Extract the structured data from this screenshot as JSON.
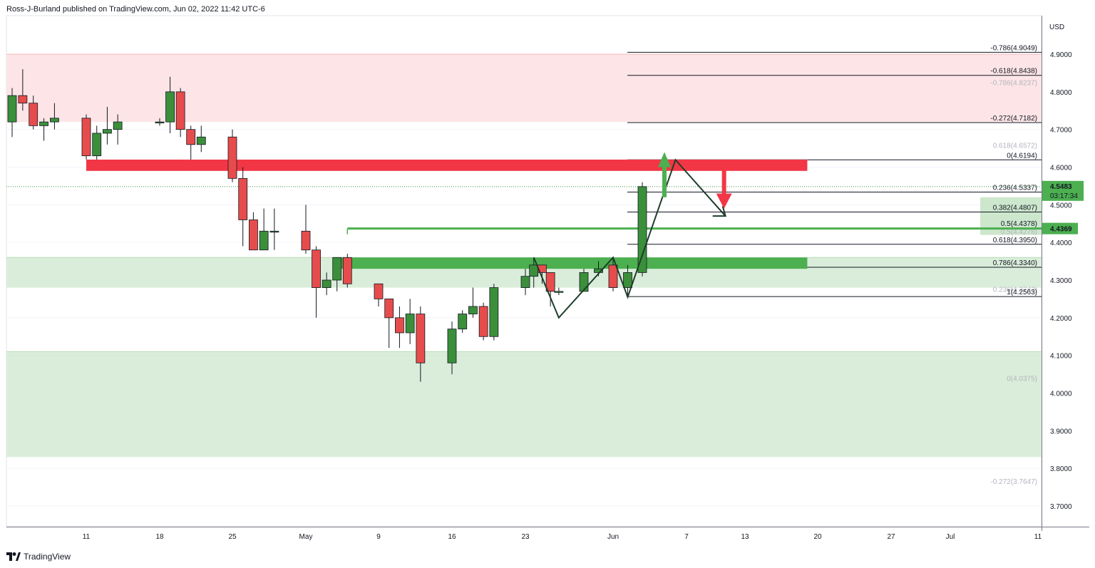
{
  "header": {
    "text": "Ross-J-Burland published on TradingView.com, Jun 02, 2022 11:42 UTC-6"
  },
  "footer": {
    "brand": "TradingView"
  },
  "colors": {
    "up": "#3b8f3b",
    "down": "#e74c4c",
    "resistance_band": "#f23645",
    "support_band": "#4caf50",
    "pink_zone": "#fde2e4",
    "green_zone": "#d6ebd6",
    "price_badge": "#4caf50",
    "target_badge": "#4caf50"
  },
  "chart_data": {
    "type": "candlestick",
    "currency": "USD",
    "y_ticks": [
      4.9,
      4.8,
      4.7,
      4.6,
      4.5,
      4.4,
      4.3,
      4.2,
      4.1,
      4.0,
      3.9,
      3.8,
      3.7
    ],
    "y_tick_labels": [
      "4.9000",
      "4.8000",
      "4.7000",
      "4.6000",
      "4.5000",
      "4.4000",
      "4.3000",
      "4.2000",
      "4.1000",
      "4.0000",
      "3.9000",
      "3.8000",
      "3.7000"
    ],
    "ylim": [
      3.64,
      4.98
    ],
    "x_labels": [
      {
        "label": "11",
        "date": "2022-04-11"
      },
      {
        "label": "18",
        "date": "2022-04-18"
      },
      {
        "label": "25",
        "date": "2022-04-25"
      },
      {
        "label": "May",
        "date": "2022-05-02"
      },
      {
        "label": "9",
        "date": "2022-05-09"
      },
      {
        "label": "16",
        "date": "2022-05-16"
      },
      {
        "label": "23",
        "date": "2022-05-23"
      },
      {
        "label": "Jun",
        "date": "2022-06-01"
      },
      {
        "label": "7",
        "date": "2022-06-07"
      },
      {
        "label": "13",
        "date": "2022-06-13"
      },
      {
        "label": "20",
        "date": "2022-06-20"
      },
      {
        "label": "27",
        "date": "2022-06-27"
      },
      {
        "label": "Jul",
        "date": "2022-07-01"
      },
      {
        "label": "11",
        "date": "2022-07-11"
      }
    ],
    "candles": [
      {
        "date": "2022-04-04",
        "o": 4.72,
        "h": 4.81,
        "l": 4.68,
        "c": 4.79
      },
      {
        "date": "2022-04-05",
        "o": 4.79,
        "h": 4.86,
        "l": 4.75,
        "c": 4.77
      },
      {
        "date": "2022-04-06",
        "o": 4.77,
        "h": 4.79,
        "l": 4.7,
        "c": 4.71
      },
      {
        "date": "2022-04-07",
        "o": 4.71,
        "h": 4.73,
        "l": 4.67,
        "c": 4.72
      },
      {
        "date": "2022-04-08",
        "o": 4.72,
        "h": 4.77,
        "l": 4.7,
        "c": 4.73
      },
      {
        "date": "2022-04-11",
        "o": 4.73,
        "h": 4.74,
        "l": 4.62,
        "c": 4.63
      },
      {
        "date": "2022-04-12",
        "o": 4.63,
        "h": 4.71,
        "l": 4.62,
        "c": 4.69
      },
      {
        "date": "2022-04-13",
        "o": 4.69,
        "h": 4.76,
        "l": 4.66,
        "c": 4.7
      },
      {
        "date": "2022-04-14",
        "o": 4.7,
        "h": 4.74,
        "l": 4.66,
        "c": 4.72
      },
      {
        "date": "2022-04-18",
        "o": 4.72,
        "h": 4.73,
        "l": 4.71,
        "c": 4.72
      },
      {
        "date": "2022-04-19",
        "o": 4.72,
        "h": 4.84,
        "l": 4.69,
        "c": 4.8
      },
      {
        "date": "2022-04-20",
        "o": 4.8,
        "h": 4.81,
        "l": 4.68,
        "c": 4.7
      },
      {
        "date": "2022-04-21",
        "o": 4.7,
        "h": 4.71,
        "l": 4.62,
        "c": 4.66
      },
      {
        "date": "2022-04-22",
        "o": 4.66,
        "h": 4.71,
        "l": 4.64,
        "c": 4.68
      },
      {
        "date": "2022-04-25",
        "o": 4.68,
        "h": 4.7,
        "l": 4.56,
        "c": 4.57
      },
      {
        "date": "2022-04-26",
        "o": 4.57,
        "h": 4.6,
        "l": 4.39,
        "c": 4.46
      },
      {
        "date": "2022-04-27",
        "o": 4.46,
        "h": 4.48,
        "l": 4.38,
        "c": 4.38
      },
      {
        "date": "2022-04-28",
        "o": 4.38,
        "h": 4.49,
        "l": 4.38,
        "c": 4.43
      },
      {
        "date": "2022-04-29",
        "o": 4.43,
        "h": 4.49,
        "l": 4.38,
        "c": 4.43
      },
      {
        "date": "2022-05-02",
        "o": 4.43,
        "h": 4.5,
        "l": 4.37,
        "c": 4.38
      },
      {
        "date": "2022-05-03",
        "o": 4.38,
        "h": 4.39,
        "l": 4.2,
        "c": 4.28
      },
      {
        "date": "2022-05-04",
        "o": 4.28,
        "h": 4.32,
        "l": 4.26,
        "c": 4.3
      },
      {
        "date": "2022-05-05",
        "o": 4.3,
        "h": 4.36,
        "l": 4.27,
        "c": 4.36
      },
      {
        "date": "2022-05-06",
        "o": 4.36,
        "h": 4.37,
        "l": 4.28,
        "c": 4.29
      },
      {
        "date": "2022-05-09",
        "o": 4.29,
        "h": 4.29,
        "l": 4.23,
        "c": 4.25
      },
      {
        "date": "2022-05-10",
        "o": 4.25,
        "h": 4.25,
        "l": 4.12,
        "c": 4.2
      },
      {
        "date": "2022-05-11",
        "o": 4.2,
        "h": 4.23,
        "l": 4.12,
        "c": 4.16
      },
      {
        "date": "2022-05-12",
        "o": 4.16,
        "h": 4.25,
        "l": 4.13,
        "c": 4.21
      },
      {
        "date": "2022-05-13",
        "o": 4.21,
        "h": 4.23,
        "l": 4.03,
        "c": 4.08
      },
      {
        "date": "2022-05-16",
        "o": 4.08,
        "h": 4.19,
        "l": 4.05,
        "c": 4.17
      },
      {
        "date": "2022-05-17",
        "o": 4.17,
        "h": 4.22,
        "l": 4.16,
        "c": 4.21
      },
      {
        "date": "2022-05-18",
        "o": 4.21,
        "h": 4.28,
        "l": 4.2,
        "c": 4.23
      },
      {
        "date": "2022-05-19",
        "o": 4.23,
        "h": 4.24,
        "l": 4.14,
        "c": 4.15
      },
      {
        "date": "2022-05-20",
        "o": 4.15,
        "h": 4.29,
        "l": 4.14,
        "c": 4.28
      },
      {
        "date": "2022-05-23",
        "o": 4.28,
        "h": 4.33,
        "l": 4.26,
        "c": 4.31
      },
      {
        "date": "2022-05-24",
        "o": 4.31,
        "h": 4.36,
        "l": 4.28,
        "c": 4.34
      },
      {
        "date": "2022-05-25",
        "o": 4.34,
        "h": 4.34,
        "l": 4.29,
        "c": 4.32
      },
      {
        "date": "2022-05-26",
        "o": 4.32,
        "h": 4.32,
        "l": 4.23,
        "c": 4.27
      },
      {
        "date": "2022-05-27",
        "o": 4.27,
        "h": 4.28,
        "l": 4.26,
        "c": 4.27
      },
      {
        "date": "2022-05-30",
        "o": 4.27,
        "h": 4.33,
        "l": 4.27,
        "c": 4.32
      },
      {
        "date": "2022-05-31",
        "o": 4.32,
        "h": 4.35,
        "l": 4.31,
        "c": 4.33
      },
      {
        "date": "2022-06-01",
        "o": 4.34,
        "h": 4.36,
        "l": 4.27,
        "c": 4.28
      },
      {
        "date": "2022-06-02",
        "o": 4.28,
        "h": 4.34,
        "l": 4.26,
        "c": 4.32
      },
      {
        "date": "2022-06-03",
        "o": 4.32,
        "h": 4.56,
        "l": 4.31,
        "c": 4.5483
      }
    ],
    "fib_levels": [
      {
        "label": "-0.786(4.9049)",
        "value": 4.9049,
        "faint": false
      },
      {
        "label": "-0.618(4.8438)",
        "value": 4.8438,
        "faint": false
      },
      {
        "label": "-0.272(4.7182)",
        "value": 4.7182,
        "faint": false
      },
      {
        "label": "0(4.6194)",
        "value": 4.6194,
        "faint": false
      },
      {
        "label": "0.236(4.5337)",
        "value": 4.5337,
        "faint": false
      },
      {
        "label": "0.382(4.4807)",
        "value": 4.4807,
        "faint": false
      },
      {
        "label": "0.5(4.4378)",
        "value": 4.4378,
        "faint": false
      },
      {
        "label": "0.618(4.3950)",
        "value": 4.395,
        "faint": false
      },
      {
        "label": "0.786(4.3340)",
        "value": 4.334,
        "faint": false
      },
      {
        "label": "1(4.2563)",
        "value": 4.2563,
        "faint": false
      }
    ],
    "faint_fib_levels": [
      {
        "label": "0.618(4.6572)",
        "value": 4.6572
      },
      {
        "label": "-0.786(4.8237)",
        "value": 4.8237
      },
      {
        "label": "0.236(4.2742)",
        "value": 4.2742
      },
      {
        "label": "0.5(4.4278)",
        "value": 4.4278
      },
      {
        "label": "0(4.0375)",
        "value": 4.0375
      },
      {
        "label": "-0.272(3.7647)",
        "value": 3.7647
      }
    ],
    "zones": [
      {
        "name": "pink-resistance-zone",
        "from": 4.72,
        "to": 4.9
      },
      {
        "name": "upper-green-zone",
        "from": 4.28,
        "to": 4.36
      },
      {
        "name": "lower-green-zone",
        "from": 3.83,
        "to": 4.11
      },
      {
        "name": "price-target-zone",
        "from": 4.42,
        "to": 4.52
      }
    ],
    "bands": [
      {
        "name": "resistance-band",
        "value_top": 4.62,
        "value_bottom": 4.59,
        "from_date": "2022-04-11",
        "to_date": "2022-06-19"
      },
      {
        "name": "support-band",
        "value_top": 4.36,
        "value_bottom": 4.33,
        "from_date": "2022-05-05",
        "to_date": "2022-06-19"
      }
    ],
    "support_line": {
      "value": 4.4369,
      "from_date": "2022-05-06"
    },
    "price": {
      "value": "4.5483",
      "countdown": "03:17:34",
      "numeric": 4.5483
    },
    "target_price": {
      "value": "4.4369",
      "numeric": 4.4369
    }
  }
}
